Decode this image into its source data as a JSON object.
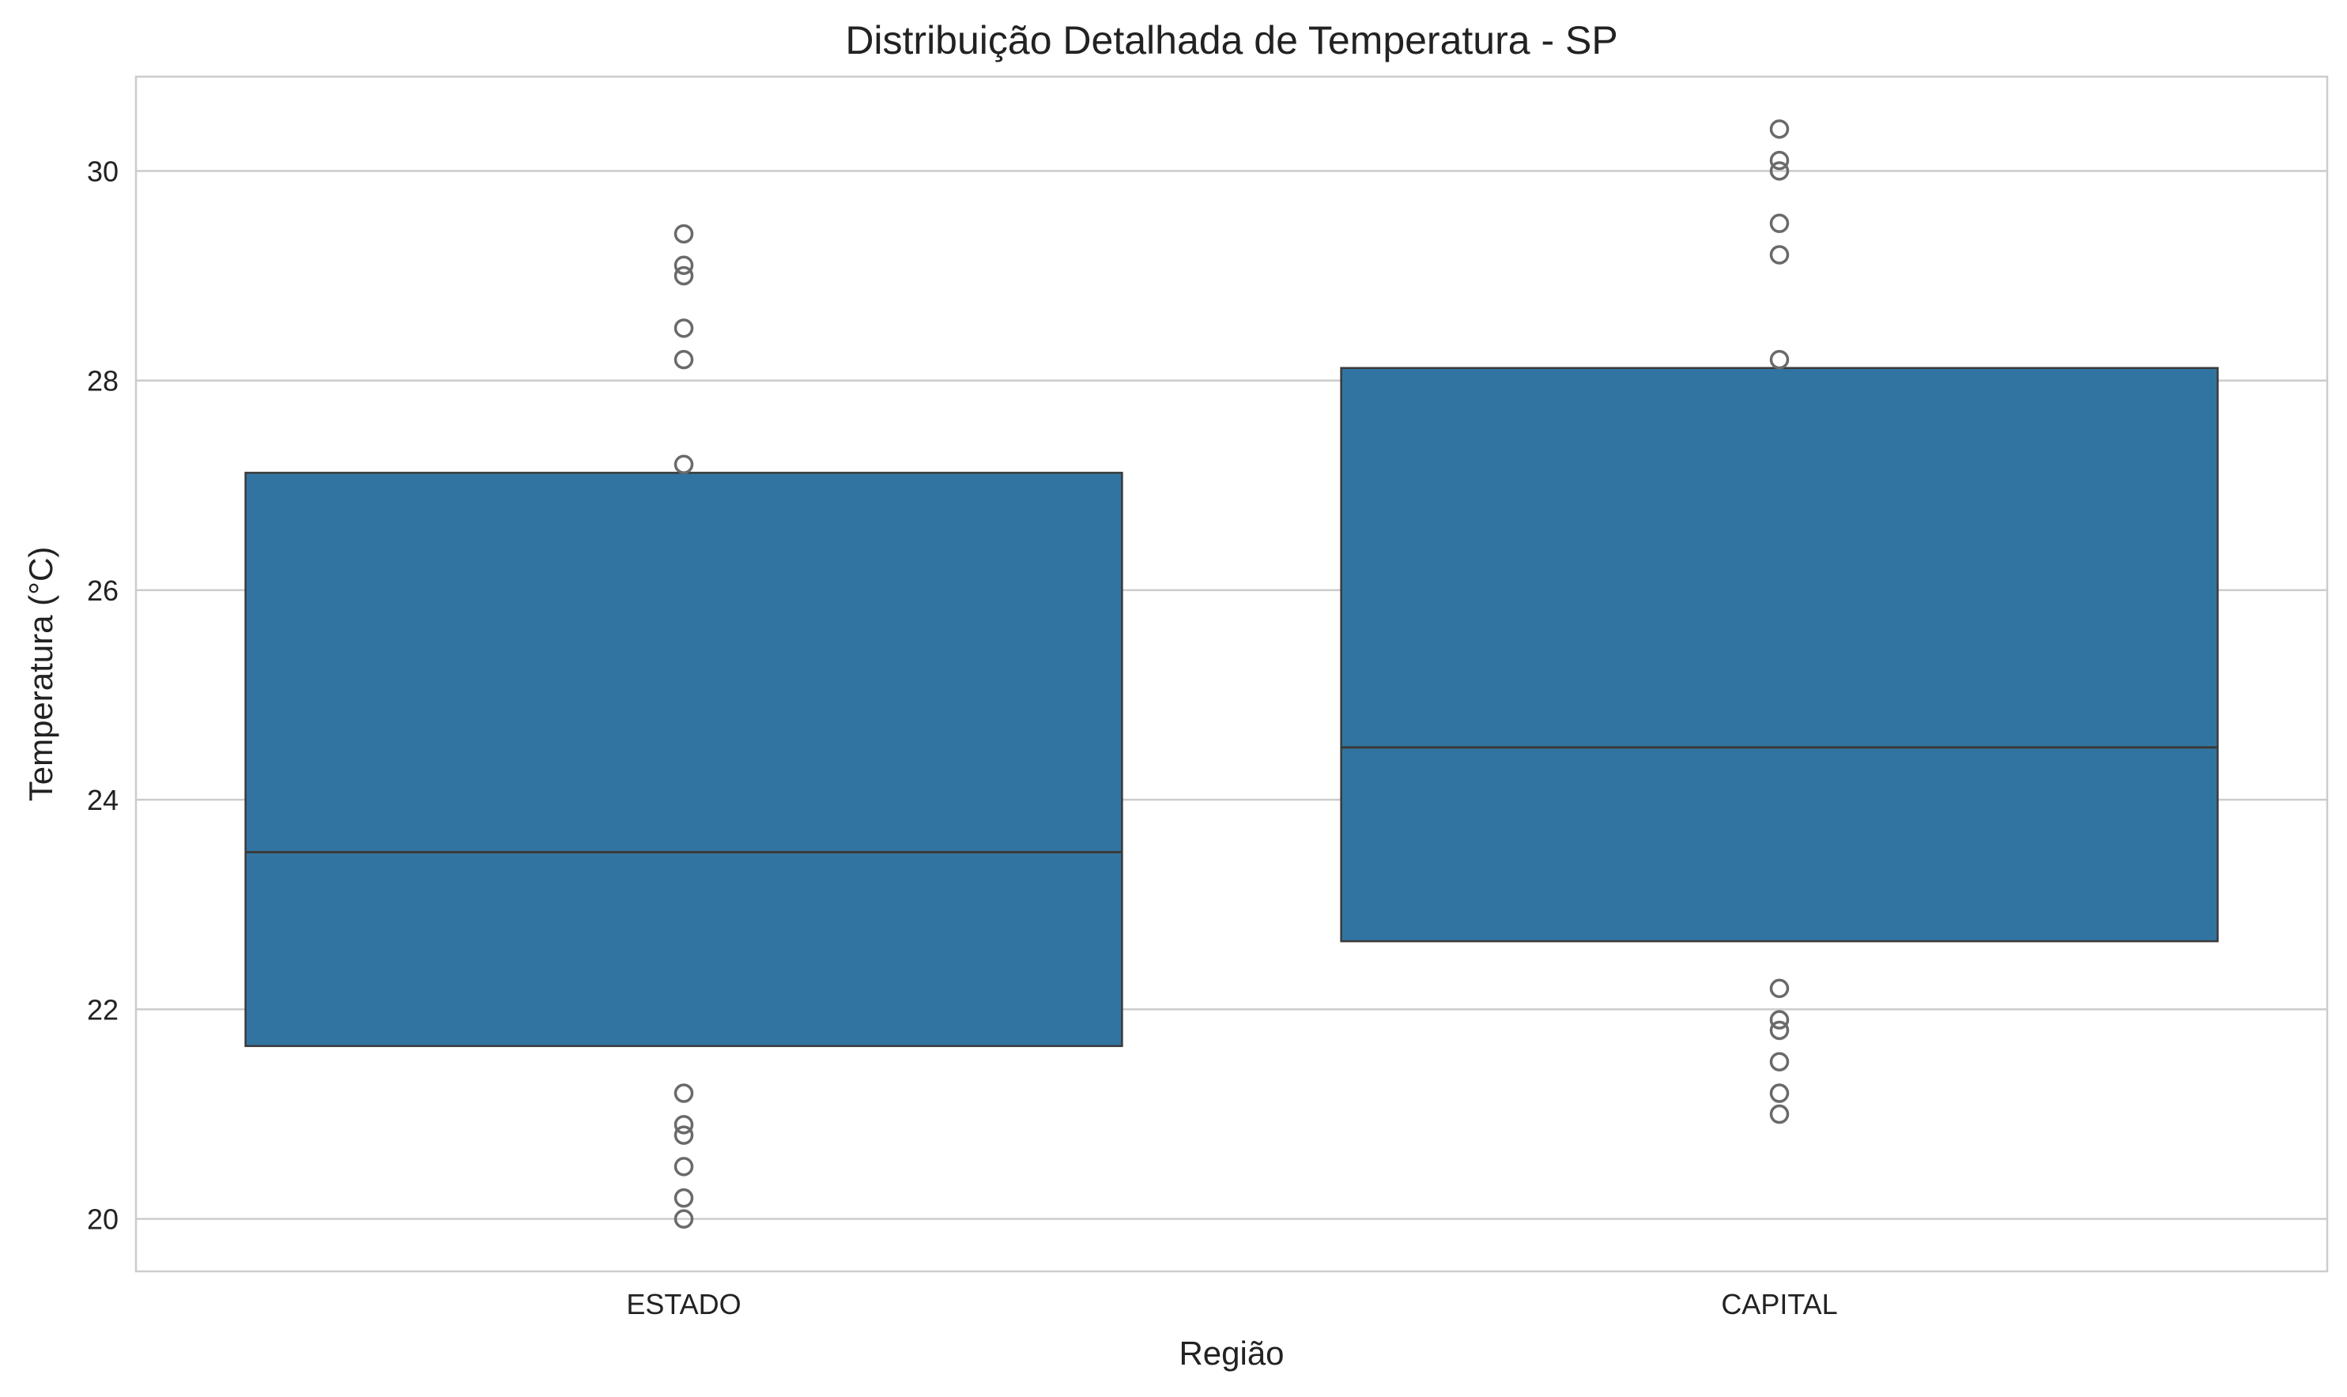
{
  "chart_data": {
    "type": "box",
    "title": "Distribuição Detalhada de Temperatura - SP",
    "xlabel": "Região",
    "ylabel": "Temperatura (°C)",
    "ylim": [
      19.5,
      30.9
    ],
    "yticks": [
      20,
      22,
      24,
      26,
      28,
      30
    ],
    "grid": true,
    "box_color": "#3274a1",
    "categories": [
      "ESTADO",
      "CAPITAL"
    ],
    "boxes": [
      {
        "category": "ESTADO",
        "q1": 21.65,
        "median": 23.5,
        "q3": 27.12,
        "fliers": [
          20.0,
          20.2,
          20.5,
          20.8,
          20.9,
          21.2,
          27.2,
          28.2,
          28.5,
          29.0,
          29.1,
          29.4
        ]
      },
      {
        "category": "CAPITAL",
        "q1": 22.65,
        "median": 24.5,
        "q3": 28.12,
        "fliers": [
          21.0,
          21.2,
          21.5,
          21.8,
          21.9,
          22.2,
          28.2,
          29.2,
          29.5,
          30.0,
          30.1,
          30.4
        ]
      }
    ]
  }
}
